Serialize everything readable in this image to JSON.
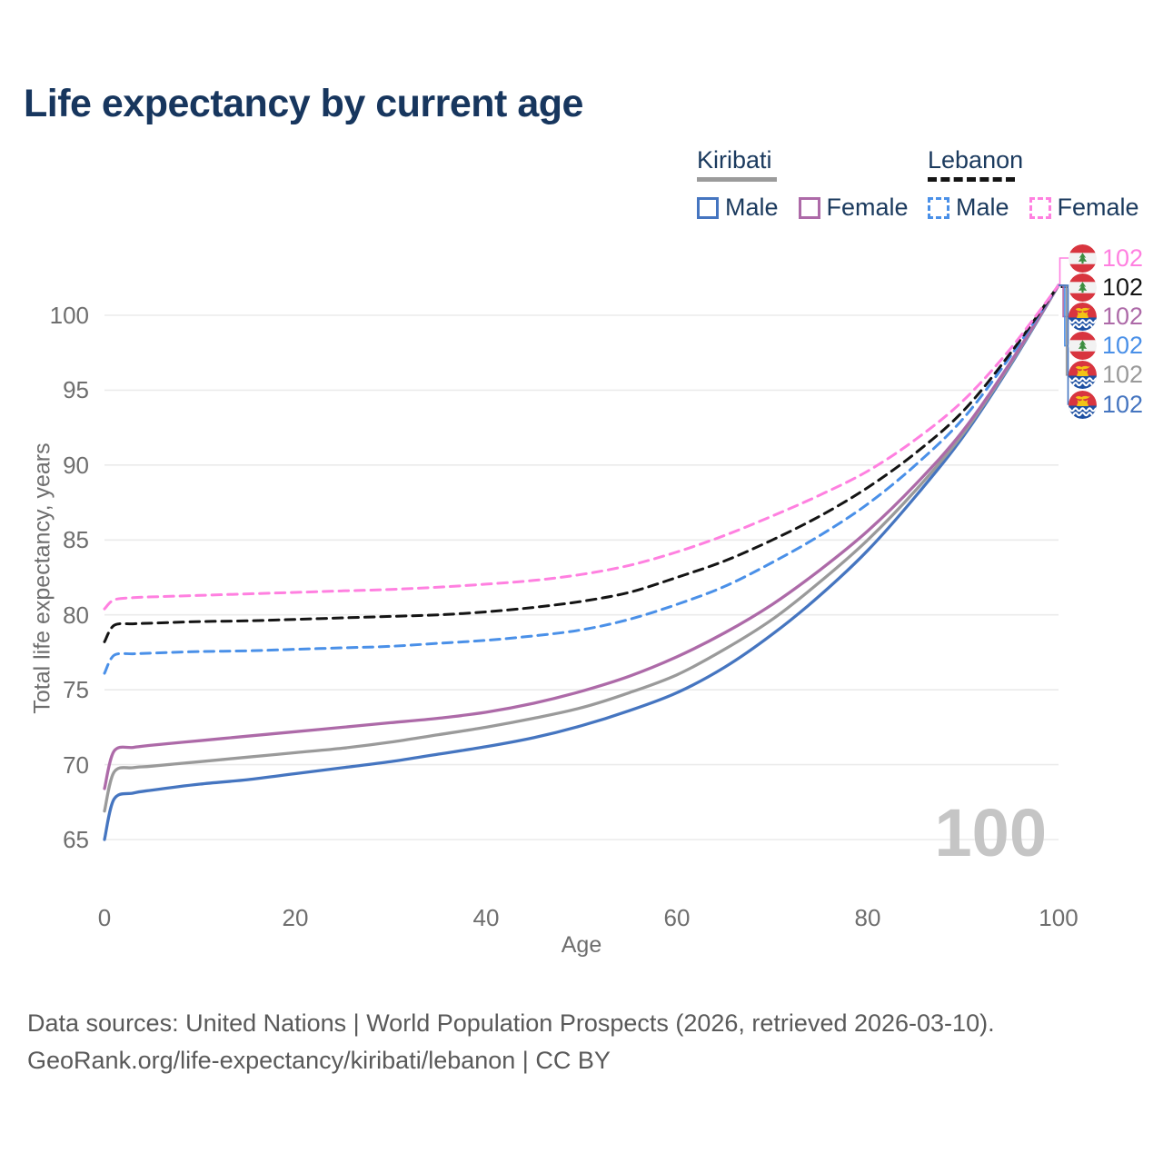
{
  "title": "Life expectancy by current age",
  "legend": {
    "groups": [
      {
        "country": "Kiribati",
        "line_style": "solid",
        "underline_color": "#9b9b9b",
        "items": [
          {
            "label": "Male",
            "color": "#4575c0",
            "dashed": false
          },
          {
            "label": "Female",
            "color": "#ad6aa8",
            "dashed": false
          }
        ]
      },
      {
        "country": "Lebanon",
        "line_style": "dashed",
        "underline_color": "#141414",
        "items": [
          {
            "label": "Male",
            "color": "#4a90e8",
            "dashed": true
          },
          {
            "label": "Female",
            "color": "#ff80e0",
            "dashed": true
          }
        ]
      }
    ]
  },
  "axes": {
    "x_label": "Age",
    "y_label": "Total life expectancy, years"
  },
  "watermark": "100",
  "end_labels": [
    {
      "value": "102",
      "flag": "lebanon",
      "series": "Lebanon Female",
      "color": "#ff80e0"
    },
    {
      "value": "102",
      "flag": "lebanon",
      "series": "Lebanon",
      "color": "#141414"
    },
    {
      "value": "102",
      "flag": "kiribati",
      "series": "Kiribati Female",
      "color": "#ad6aa8"
    },
    {
      "value": "102",
      "flag": "lebanon",
      "series": "Lebanon Male",
      "color": "#4a90e8"
    },
    {
      "value": "102",
      "flag": "kiribati",
      "series": "Kiribati",
      "color": "#9a9a9a"
    },
    {
      "value": "102",
      "flag": "kiribati",
      "series": "Kiribati Male",
      "color": "#4575c0"
    }
  ],
  "footer": {
    "line1": "Data sources: United Nations | World Population Prospects (2026, retrieved 2026-03-10).",
    "line2": "GeoRank.org/life-expectancy/kiribati/lebanon | CC BY"
  },
  "chart_data": {
    "type": "line",
    "title": "Life expectancy by current age",
    "xlabel": "Age",
    "ylabel": "Total life expectancy, years",
    "xlim": [
      0,
      100
    ],
    "ylim": [
      63,
      103.5
    ],
    "x_ticks": [
      0,
      20,
      40,
      60,
      80,
      100
    ],
    "y_ticks": [
      65,
      70,
      75,
      80,
      85,
      90,
      95,
      100
    ],
    "grid": true,
    "legend_position": "top-right",
    "x": [
      0,
      1,
      3,
      5,
      10,
      15,
      20,
      25,
      30,
      35,
      40,
      45,
      50,
      55,
      60,
      65,
      70,
      75,
      80,
      85,
      90,
      95,
      100
    ],
    "series": [
      {
        "name": "Kiribati Male",
        "country": "Kiribati",
        "sex": "Male",
        "color": "#4575c0",
        "dash": false,
        "values": [
          65.0,
          67.7,
          68.1,
          68.3,
          68.7,
          69.0,
          69.4,
          69.8,
          70.2,
          70.7,
          71.2,
          71.8,
          72.6,
          73.6,
          74.8,
          76.5,
          78.7,
          81.3,
          84.3,
          87.9,
          91.9,
          96.7,
          102
        ]
      },
      {
        "name": "Kiribati",
        "country": "Kiribati",
        "sex": "Both",
        "color": "#9a9a9a",
        "dash": false,
        "values": [
          66.9,
          69.5,
          69.8,
          69.9,
          70.2,
          70.5,
          70.8,
          71.1,
          71.5,
          72.0,
          72.5,
          73.1,
          73.8,
          74.8,
          76.0,
          77.7,
          79.7,
          82.2,
          85.0,
          88.3,
          92.1,
          96.8,
          102
        ]
      },
      {
        "name": "Kiribati Female",
        "country": "Kiribati",
        "sex": "Female",
        "color": "#ad6aa8",
        "dash": false,
        "values": [
          68.4,
          70.9,
          71.15,
          71.3,
          71.6,
          71.9,
          72.2,
          72.5,
          72.8,
          73.1,
          73.5,
          74.1,
          74.9,
          75.9,
          77.2,
          78.8,
          80.7,
          83.0,
          85.6,
          88.7,
          92.3,
          96.9,
          102
        ]
      },
      {
        "name": "Lebanon Male",
        "country": "Lebanon",
        "sex": "Male",
        "color": "#4a90e8",
        "dash": true,
        "values": [
          76.1,
          77.3,
          77.4,
          77.45,
          77.55,
          77.6,
          77.7,
          77.8,
          77.9,
          78.1,
          78.3,
          78.6,
          79.0,
          79.7,
          80.7,
          81.9,
          83.5,
          85.3,
          87.4,
          90.0,
          93.1,
          97.3,
          102
        ]
      },
      {
        "name": "Lebanon",
        "country": "Lebanon",
        "sex": "Both",
        "color": "#141414",
        "dash": true,
        "values": [
          78.2,
          79.3,
          79.4,
          79.45,
          79.55,
          79.6,
          79.7,
          79.8,
          79.9,
          80.0,
          80.2,
          80.5,
          80.9,
          81.5,
          82.5,
          83.6,
          85.0,
          86.6,
          88.5,
          90.8,
          93.6,
          97.5,
          102
        ]
      },
      {
        "name": "Lebanon Female",
        "country": "Lebanon",
        "sex": "Female",
        "color": "#ff80e0",
        "dash": true,
        "values": [
          80.4,
          81.0,
          81.15,
          81.2,
          81.3,
          81.4,
          81.5,
          81.6,
          81.7,
          81.85,
          82.05,
          82.3,
          82.7,
          83.3,
          84.2,
          85.3,
          86.6,
          88.0,
          89.6,
          91.7,
          94.3,
          97.8,
          102
        ]
      }
    ]
  }
}
